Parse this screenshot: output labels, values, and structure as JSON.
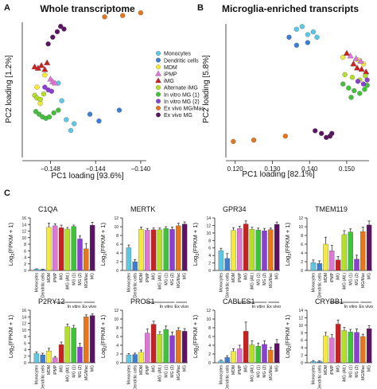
{
  "panel_labels": {
    "a": "A",
    "b": "B",
    "c": "C"
  },
  "colors": {
    "monocytes": "#5bc8e6",
    "dendritic": "#3b7fd4",
    "mdm": "#f3ea3a",
    "ipmp": "#e074d8",
    "img": "#cc1f1f",
    "alternate": "#b5de2b",
    "invitro1": "#42c13a",
    "invitro2": "#8a3fcf",
    "exvivo_mac": "#e2771e",
    "exvivo_mg": "#5a1560"
  },
  "legend": [
    {
      "label": "Monocytes",
      "color": "#5bc8e6",
      "shape": "circle"
    },
    {
      "label": "Dendritic cells",
      "color": "#3b7fd4",
      "shape": "circle"
    },
    {
      "label": "MDM",
      "color": "#f3ea3a",
      "shape": "circle"
    },
    {
      "label": "iPMP",
      "color": "#e074d8",
      "shape": "triangle"
    },
    {
      "label": "iMG",
      "color": "#cc1f1f",
      "shape": "triangle"
    },
    {
      "label": "Alternate iMG",
      "color": "#b5de2b",
      "shape": "circle"
    },
    {
      "label": "In vitro MG (1)",
      "color": "#42c13a",
      "shape": "circle"
    },
    {
      "label": "In vitro MG (2)",
      "color": "#8a3fcf",
      "shape": "circle"
    },
    {
      "label": "Ex vivo MG/Mac",
      "color": "#e2771e",
      "shape": "circle"
    },
    {
      "label": "Ex vivo MG",
      "color": "#5a1560",
      "shape": "circle"
    }
  ],
  "chart_data": [
    {
      "id": "A",
      "type": "scatter",
      "title": "Whole transcriptome",
      "xlabel": "PC1 loading [93.6%]",
      "ylabel": "PC2 loading [1.2%]",
      "xlim": [
        -0.1505,
        -0.1395
      ],
      "xticks": [
        -0.148,
        -0.144,
        -0.14
      ],
      "xtick_labels": [
        "−0.148",
        "−0.144",
        "−0.140"
      ],
      "points": [
        {
          "x": -0.1473,
          "y": 0.55,
          "c": "monocytes"
        },
        {
          "x": -0.147,
          "y": 0.42,
          "c": "monocytes"
        },
        {
          "x": -0.1466,
          "y": 0.28,
          "c": "monocytes"
        },
        {
          "x": -0.1462,
          "y": 0.2,
          "c": "monocytes"
        },
        {
          "x": -0.1459,
          "y": 0.25,
          "c": "monocytes"
        },
        {
          "x": -0.1445,
          "y": 0.32,
          "c": "dendritic"
        },
        {
          "x": -0.1437,
          "y": 0.27,
          "c": "dendritic"
        },
        {
          "x": -0.1419,
          "y": 0.35,
          "c": "dendritic"
        },
        {
          "x": -0.1492,
          "y": 0.52,
          "c": "mdm"
        },
        {
          "x": -0.1489,
          "y": 0.4,
          "c": "mdm"
        },
        {
          "x": -0.1485,
          "y": 0.61,
          "c": "mdm"
        },
        {
          "x": -0.148,
          "y": 0.58,
          "c": "ipmp",
          "s": "tri"
        },
        {
          "x": -0.1478,
          "y": 0.56,
          "c": "ipmp",
          "s": "tri"
        },
        {
          "x": -0.1476,
          "y": 0.55,
          "c": "ipmp",
          "s": "tri"
        },
        {
          "x": -0.1494,
          "y": 0.67,
          "c": "img",
          "s": "tri"
        },
        {
          "x": -0.1491,
          "y": 0.66,
          "c": "img",
          "s": "tri"
        },
        {
          "x": -0.1488,
          "y": 0.68,
          "c": "img",
          "s": "tri"
        },
        {
          "x": -0.1485,
          "y": 0.65,
          "c": "img",
          "s": "tri"
        },
        {
          "x": -0.1483,
          "y": 0.7,
          "c": "img",
          "s": "tri"
        },
        {
          "x": -0.1494,
          "y": 0.46,
          "c": "alternate"
        },
        {
          "x": -0.1492,
          "y": 0.44,
          "c": "alternate"
        },
        {
          "x": -0.1489,
          "y": 0.43,
          "c": "alternate"
        },
        {
          "x": -0.1486,
          "y": 0.47,
          "c": "alternate"
        },
        {
          "x": -0.1493,
          "y": 0.34,
          "c": "invitro1"
        },
        {
          "x": -0.149,
          "y": 0.32,
          "c": "invitro1"
        },
        {
          "x": -0.1487,
          "y": 0.3,
          "c": "invitro1"
        },
        {
          "x": -0.1484,
          "y": 0.29,
          "c": "invitro1"
        },
        {
          "x": -0.1481,
          "y": 0.3,
          "c": "invitro1"
        },
        {
          "x": -0.1477,
          "y": 0.33,
          "c": "invitro1"
        },
        {
          "x": -0.1473,
          "y": 0.35,
          "c": "invitro1"
        },
        {
          "x": -0.1485,
          "y": 0.52,
          "c": "invitro2"
        },
        {
          "x": -0.1482,
          "y": 0.5,
          "c": "invitro2"
        },
        {
          "x": -0.1479,
          "y": 0.49,
          "c": "invitro2"
        },
        {
          "x": -0.1432,
          "y": 1.04,
          "c": "exvivo_mac"
        },
        {
          "x": -0.1416,
          "y": 1.05,
          "c": "exvivo_mac"
        },
        {
          "x": -0.14,
          "y": 1.07,
          "c": "exvivo_mac"
        },
        {
          "x": -0.1482,
          "y": 0.84,
          "c": "exvivo_mg"
        },
        {
          "x": -0.1478,
          "y": 0.89,
          "c": "exvivo_mg"
        },
        {
          "x": -0.1474,
          "y": 0.93,
          "c": "exvivo_mg"
        },
        {
          "x": -0.1471,
          "y": 0.97,
          "c": "exvivo_mg"
        },
        {
          "x": -0.1468,
          "y": 0.95,
          "c": "exvivo_mg"
        }
      ]
    },
    {
      "id": "B",
      "type": "scatter",
      "title": "Microglia-enriched transcripts",
      "xlabel": "PC1 loading [82.1%]",
      "ylabel": "PC2 loading [5.8%]",
      "xlim": [
        0.1175,
        0.156
      ],
      "xticks": [
        0.12,
        0.13,
        0.14,
        0.15
      ],
      "xtick_labels": [
        "0.120",
        "0.130",
        "0.140",
        "0.150"
      ],
      "points": [
        {
          "x": 0.1365,
          "y": 0.96,
          "c": "monocytes"
        },
        {
          "x": 0.138,
          "y": 0.98,
          "c": "monocytes"
        },
        {
          "x": 0.1395,
          "y": 0.92,
          "c": "monocytes"
        },
        {
          "x": 0.141,
          "y": 0.94,
          "c": "monocytes"
        },
        {
          "x": 0.142,
          "y": 0.9,
          "c": "monocytes"
        },
        {
          "x": 0.1345,
          "y": 0.9,
          "c": "dendritic"
        },
        {
          "x": 0.1365,
          "y": 0.84,
          "c": "dendritic"
        },
        {
          "x": 0.1395,
          "y": 0.86,
          "c": "dendritic"
        },
        {
          "x": 0.149,
          "y": 0.75,
          "c": "mdm"
        },
        {
          "x": 0.153,
          "y": 0.73,
          "c": "mdm"
        },
        {
          "x": 0.1545,
          "y": 0.7,
          "c": "mdm"
        },
        {
          "x": 0.151,
          "y": 0.76,
          "c": "ipmp",
          "s": "tri"
        },
        {
          "x": 0.1525,
          "y": 0.74,
          "c": "ipmp",
          "s": "tri"
        },
        {
          "x": 0.1538,
          "y": 0.72,
          "c": "ipmp",
          "s": "tri"
        },
        {
          "x": 0.15,
          "y": 0.78,
          "c": "img",
          "s": "tri"
        },
        {
          "x": 0.1518,
          "y": 0.7,
          "c": "img",
          "s": "tri"
        },
        {
          "x": 0.1528,
          "y": 0.67,
          "c": "img",
          "s": "tri"
        },
        {
          "x": 0.154,
          "y": 0.66,
          "c": "img",
          "s": "tri"
        },
        {
          "x": 0.1552,
          "y": 0.64,
          "c": "img",
          "s": "tri"
        },
        {
          "x": 0.1495,
          "y": 0.62,
          "c": "alternate"
        },
        {
          "x": 0.1515,
          "y": 0.6,
          "c": "alternate"
        },
        {
          "x": 0.1535,
          "y": 0.58,
          "c": "alternate"
        },
        {
          "x": 0.155,
          "y": 0.61,
          "c": "alternate"
        },
        {
          "x": 0.149,
          "y": 0.55,
          "c": "invitro1"
        },
        {
          "x": 0.1505,
          "y": 0.52,
          "c": "invitro1"
        },
        {
          "x": 0.152,
          "y": 0.5,
          "c": "invitro1"
        },
        {
          "x": 0.1535,
          "y": 0.48,
          "c": "invitro1"
        },
        {
          "x": 0.1548,
          "y": 0.51,
          "c": "invitro1"
        },
        {
          "x": 0.1555,
          "y": 0.54,
          "c": "invitro1"
        },
        {
          "x": 0.1512,
          "y": 0.45,
          "c": "invitro1"
        },
        {
          "x": 0.153,
          "y": 0.57,
          "c": "invitro2"
        },
        {
          "x": 0.1545,
          "y": 0.55,
          "c": "invitro2"
        },
        {
          "x": 0.1555,
          "y": 0.58,
          "c": "invitro2"
        },
        {
          "x": 0.1195,
          "y": 0.12,
          "c": "exvivo_mac"
        },
        {
          "x": 0.125,
          "y": 0.13,
          "c": "exvivo_mac"
        },
        {
          "x": 0.1335,
          "y": 0.16,
          "c": "exvivo_mac"
        },
        {
          "x": 0.1415,
          "y": 0.2,
          "c": "exvivo_mg"
        },
        {
          "x": 0.1432,
          "y": 0.18,
          "c": "exvivo_mg"
        },
        {
          "x": 0.1445,
          "y": 0.15,
          "c": "exvivo_mg"
        },
        {
          "x": 0.1455,
          "y": 0.16,
          "c": "exvivo_mg"
        },
        {
          "x": 0.146,
          "y": 0.18,
          "c": "exvivo_mg"
        }
      ]
    },
    {
      "id": "C",
      "type": "bar",
      "ylabel_main": "Log",
      "ylabel_sub": "2",
      "ylabel_rest": "(FPKM + 1)",
      "categories": [
        "Monocytes",
        "Dendritic cells",
        "MDM",
        "iPMP",
        "iMG",
        "iMG (Alt.)",
        "MG (1)",
        "MG (2)",
        "MG/Mac",
        "MG"
      ],
      "category_colors": [
        "monocytes",
        "dendritic",
        "mdm",
        "ipmp",
        "img",
        "alternate",
        "invitro1",
        "invitro2",
        "exvivo_mac",
        "exvivo_mg"
      ],
      "group_labels": [
        "In vitro",
        "Ex vivo"
      ],
      "genes": [
        {
          "name": "C1QA",
          "ymax": 16,
          "values": [
            0.4,
            0.3,
            13.2,
            13.6,
            13.0,
            12.6,
            13.4,
            9.6,
            6.6,
            13.8
          ],
          "err": [
            0.1,
            0.1,
            1.2,
            0.6,
            0.8,
            0.5,
            0.4,
            1.0,
            1.6,
            0.9
          ]
        },
        {
          "name": "MERTK",
          "ymax": 12,
          "values": [
            5.2,
            2.0,
            9.4,
            9.2,
            9.3,
            9.3,
            9.6,
            9.4,
            10.2,
            10.6
          ],
          "err": [
            0.6,
            0.5,
            0.5,
            0.4,
            0.4,
            0.4,
            0.4,
            0.5,
            0.6,
            0.5
          ]
        },
        {
          "name": "GPR34",
          "ymax": 14,
          "values": [
            5.3,
            3.2,
            10.7,
            11.2,
            12.4,
            11.0,
            10.8,
            10.6,
            10.9,
            12.3
          ],
          "err": [
            0.6,
            1.3,
            0.7,
            0.6,
            0.8,
            0.5,
            0.5,
            0.6,
            0.4,
            0.6
          ]
        },
        {
          "name": "TMEM119",
          "ymax": 12,
          "values": [
            1.8,
            1.6,
            6.0,
            4.5,
            2.4,
            8.2,
            8.8,
            2.6,
            8.9,
            10.4
          ],
          "err": [
            0.6,
            0.6,
            1.6,
            1.2,
            0.8,
            0.9,
            0.7,
            0.9,
            1.0,
            0.9
          ]
        },
        {
          "name": "P2RY12",
          "ymax": 16,
          "values": [
            2.8,
            2.4,
            3.6,
            1.5,
            5.5,
            11.0,
            10.6,
            4.8,
            14.0,
            14.4
          ],
          "err": [
            0.5,
            0.5,
            0.8,
            0.4,
            0.8,
            0.8,
            0.8,
            1.1,
            0.6,
            0.5
          ]
        },
        {
          "name": "PROS1",
          "ymax": 12,
          "values": [
            1.8,
            1.9,
            2.4,
            6.8,
            8.8,
            6.5,
            7.6,
            6.2,
            7.4,
            7.2
          ],
          "err": [
            0.3,
            0.3,
            0.5,
            0.9,
            0.7,
            0.6,
            0.8,
            0.8,
            0.6,
            0.6
          ]
        },
        {
          "name": "CABLES1",
          "ymax": 12,
          "values": [
            0.4,
            1.2,
            2.6,
            3.2,
            7.2,
            4.1,
            3.8,
            4.2,
            2.9,
            4.4
          ],
          "err": [
            0.2,
            0.4,
            0.6,
            0.8,
            2.1,
            0.9,
            0.7,
            0.8,
            0.6,
            0.9
          ]
        },
        {
          "name": "CRYBB1",
          "ymax": 14,
          "values": [
            0.4,
            0.3,
            7.2,
            6.6,
            10.3,
            8.6,
            8.2,
            8.1,
            7.0,
            9.1
          ],
          "err": [
            0.2,
            0.2,
            0.9,
            0.9,
            1.1,
            0.8,
            0.7,
            0.9,
            0.6,
            0.8
          ]
        }
      ]
    }
  ]
}
